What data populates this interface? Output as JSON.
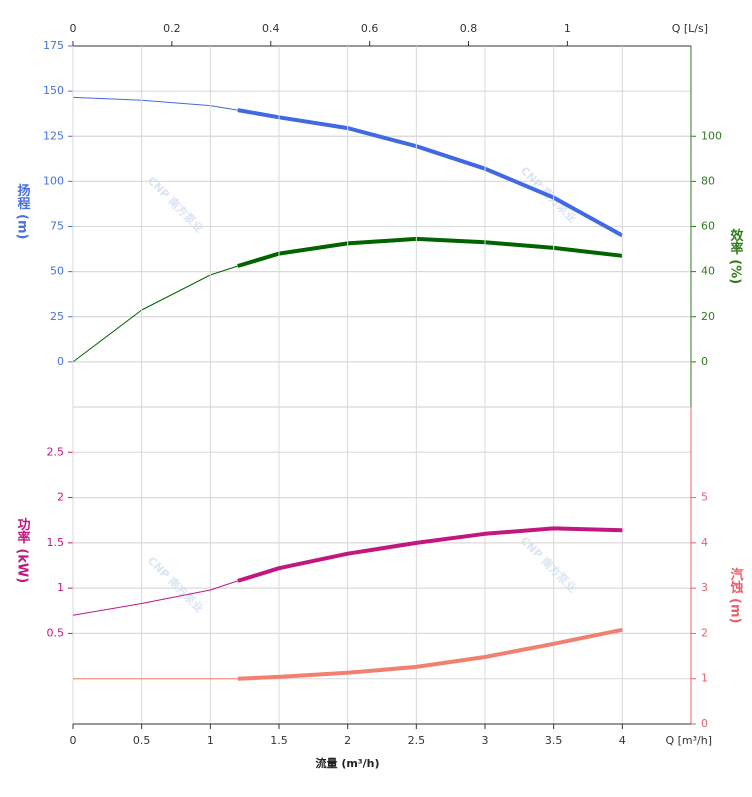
{
  "chart_data": [
    {
      "type": "line",
      "watermark": "CNP 南方泵业",
      "x2label": "Q [L/s]",
      "x2lim": [
        0,
        1.25
      ],
      "x2ticks": [
        0,
        0.2,
        0.4,
        0.6,
        0.8,
        1
      ],
      "xlim": [
        0,
        4.5
      ],
      "bold_range": [
        1.2,
        4
      ],
      "ylabel": "扬程 (m)",
      "ylim": [
        -25,
        175
      ],
      "yticks": [
        0,
        25,
        50,
        75,
        100,
        125,
        150,
        175
      ],
      "ycolor": "#4a6fe0",
      "y2label": "效率 (%)",
      "y2lim": [
        -20,
        140
      ],
      "y2ticks": [
        0,
        20,
        40,
        60,
        80,
        100
      ],
      "y2color": "#2e7d1e",
      "grid": true,
      "x": [
        0,
        0.5,
        1,
        1.2,
        1.5,
        2,
        2.5,
        3,
        3.5,
        4
      ],
      "series": [
        {
          "color": "#4169e1",
          "values": [
            146.5,
            145,
            142,
            139.5,
            135.5,
            129.5,
            119.5,
            107,
            91,
            70
          ]
        },
        {
          "color": "#006400",
          "axis": "y2",
          "values": [
            0,
            23,
            38.5,
            42.5,
            48,
            52.5,
            54.5,
            53,
            50.5,
            47
          ]
        }
      ]
    },
    {
      "type": "line",
      "watermark": "CNP 南方泵业",
      "xlabel": "流量 (m³/h)",
      "xunit": "Q [m³/h]",
      "xlim": [
        0,
        4.5
      ],
      "xticks": [
        0,
        0.5,
        1,
        1.5,
        2,
        2.5,
        3,
        3.5,
        4
      ],
      "bold_range": [
        1.2,
        4
      ],
      "ylabel": "功率 (kW)",
      "ylim": [
        -0.5,
        3
      ],
      "yticks": [
        0.5,
        1,
        1.5,
        2,
        2.5
      ],
      "ycolor": "#c0187f",
      "y2label": "汽蚀 (m)",
      "y2lim": [
        0,
        7
      ],
      "y2ticks": [
        0,
        1,
        2,
        3,
        4,
        5
      ],
      "y2color": "#e8606a",
      "grid": true,
      "x": [
        0,
        0.5,
        1,
        1.2,
        1.5,
        2,
        2.5,
        3,
        3.5,
        4
      ],
      "series": [
        {
          "color": "#c0187f",
          "values": [
            0.7,
            0.83,
            0.98,
            1.08,
            1.22,
            1.38,
            1.5,
            1.6,
            1.66,
            1.64
          ]
        },
        {
          "color": "#f08070",
          "axis": "y2",
          "values": [
            1,
            1,
            1,
            1,
            1.04,
            1.13,
            1.26,
            1.48,
            1.77,
            2.08
          ]
        }
      ]
    }
  ]
}
